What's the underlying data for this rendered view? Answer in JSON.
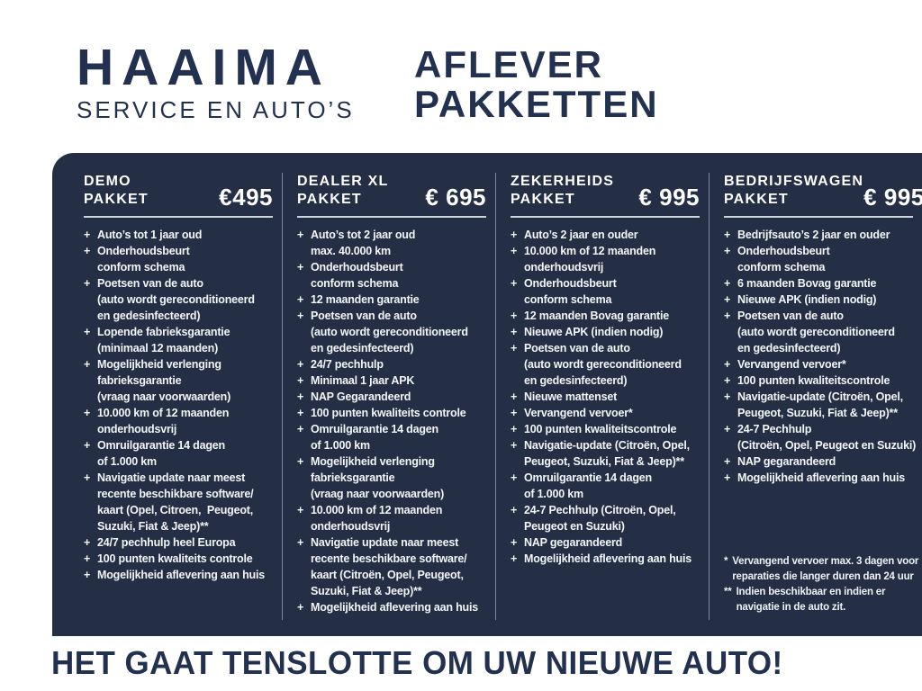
{
  "brand": {
    "name": "HAAIMA",
    "subtitle": "SERVICE EN AUTO’S"
  },
  "page_title": "AFLEVER\nPAKKETTEN",
  "plus_marker": "+",
  "colors": {
    "panel_background": "#242e44",
    "headline_navy": "#233150",
    "list_text": "#f3f5f9",
    "column_divider": "#bec8d8",
    "header_rule": "#ccd3de"
  },
  "packages": [
    {
      "title": "DEMO\nPAKKET",
      "price": "€495",
      "items": [
        "Auto’s tot 1 jaar oud",
        "Onderhoudsbeurt\nconform schema",
        "Poetsen van de auto\n(auto wordt gereconditioneerd\nen gedesinfecteerd)",
        "Lopende fabrieksgarantie\n(minimaal 12 maanden)",
        "Mogelijkheid verlenging\nfabrieksgarantie\n(vraag naar voorwaarden)",
        "10.000 km of 12 maanden\nonderhoudsvrij",
        "Omruilgarantie 14 dagen\nof 1.000 km",
        "Navigatie update naar meest\nrecente beschikbare software/\nkaart (Opel, Citroen,  Peugeot,\nSuzuki, Fiat & Jeep)**",
        "24/7 pechhulp heel Europa",
        "100 punten kwaliteits controle",
        "Mogelijkheid aflevering aan huis"
      ]
    },
    {
      "title": "DEALER XL\nPAKKET",
      "price": "€ 695",
      "items": [
        "Auto’s tot 2 jaar oud\nmax. 40.000 km",
        "Onderhoudsbeurt\nconform schema",
        "12 maanden garantie",
        "Poetsen van de auto\n(auto wordt gereconditioneerd\nen gedesinfecteerd)",
        "24/7 pechhulp",
        "Minimaal 1 jaar APK",
        "NAP Gegarandeerd",
        "100 punten kwaliteits controle",
        "Omruilgarantie 14 dagen\nof 1.000 km",
        "Mogelijkheid verlenging\nfabrieksgarantie\n(vraag naar voorwaarden)",
        "10.000 km of 12 maanden\nonderhoudsvrij",
        "Navigatie update naar meest\nrecente beschikbare software/\nkaart (Citroën, Opel, Peugeot,\nSuzuki, Fiat & Jeep)**",
        "Mogelijkheid aflevering aan huis"
      ]
    },
    {
      "title": "ZEKERHEIDS\nPAKKET",
      "price": "€ 995",
      "items": [
        "Auto’s 2 jaar en ouder",
        "10.000 km of 12 maanden\nonderhoudsvrij",
        "Onderhoudsbeurt\nconform schema",
        "12 maanden Bovag garantie",
        "Nieuwe APK (indien nodig)",
        "Poetsen van de auto\n(auto wordt gereconditioneerd\nen gedesinfecteerd)",
        "Nieuwe mattenset",
        "Vervangend vervoer*",
        "100 punten kwaliteitscontrole",
        "Navigatie-update (Citroën, Opel,\nPeugeot, Suzuki, Fiat & Jeep)**",
        "Omruilgarantie 14 dagen\nof 1.000 km",
        "24-7 Pechhulp (Citroën, Opel,\nPeugeot en Suzuki)",
        "NAP gegarandeerd",
        "Mogelijkheid aflevering aan huis"
      ]
    },
    {
      "title": "BEDRIJFSWAGEN\nPAKKET",
      "price": "€ 995",
      "items": [
        "Bedrijfsauto’s 2 jaar en ouder",
        "Onderhoudsbeurt\nconform schema",
        "6 maanden Bovag garantie",
        "Nieuwe APK (indien nodig)",
        "Poetsen van de auto\n(auto wordt gereconditioneerd\nen gedesinfecteerd)",
        "Vervangend vervoer*",
        "100 punten kwaliteitscontrole",
        "Navigatie-update (Citroën, Opel,\nPeugeot, Suzuki, Fiat & Jeep)**",
        "24-7 Pechhulp\n(Citroën, Opel, Peugeot en Suzuki)",
        "NAP gegarandeerd",
        "Mogelijkheid aflevering aan huis"
      ]
    }
  ],
  "footnotes": [
    {
      "marker": "*",
      "text": "Vervangend vervoer max. 3 dagen voor\nreparaties die langer duren dan 24 uur"
    },
    {
      "marker": "**",
      "text": "Indien beschikbaar en indien er\nnavigatie in de auto zit."
    }
  ],
  "tagline": "HET GAAT TENSLOTTE OM UW NIEUWE AUTO!"
}
